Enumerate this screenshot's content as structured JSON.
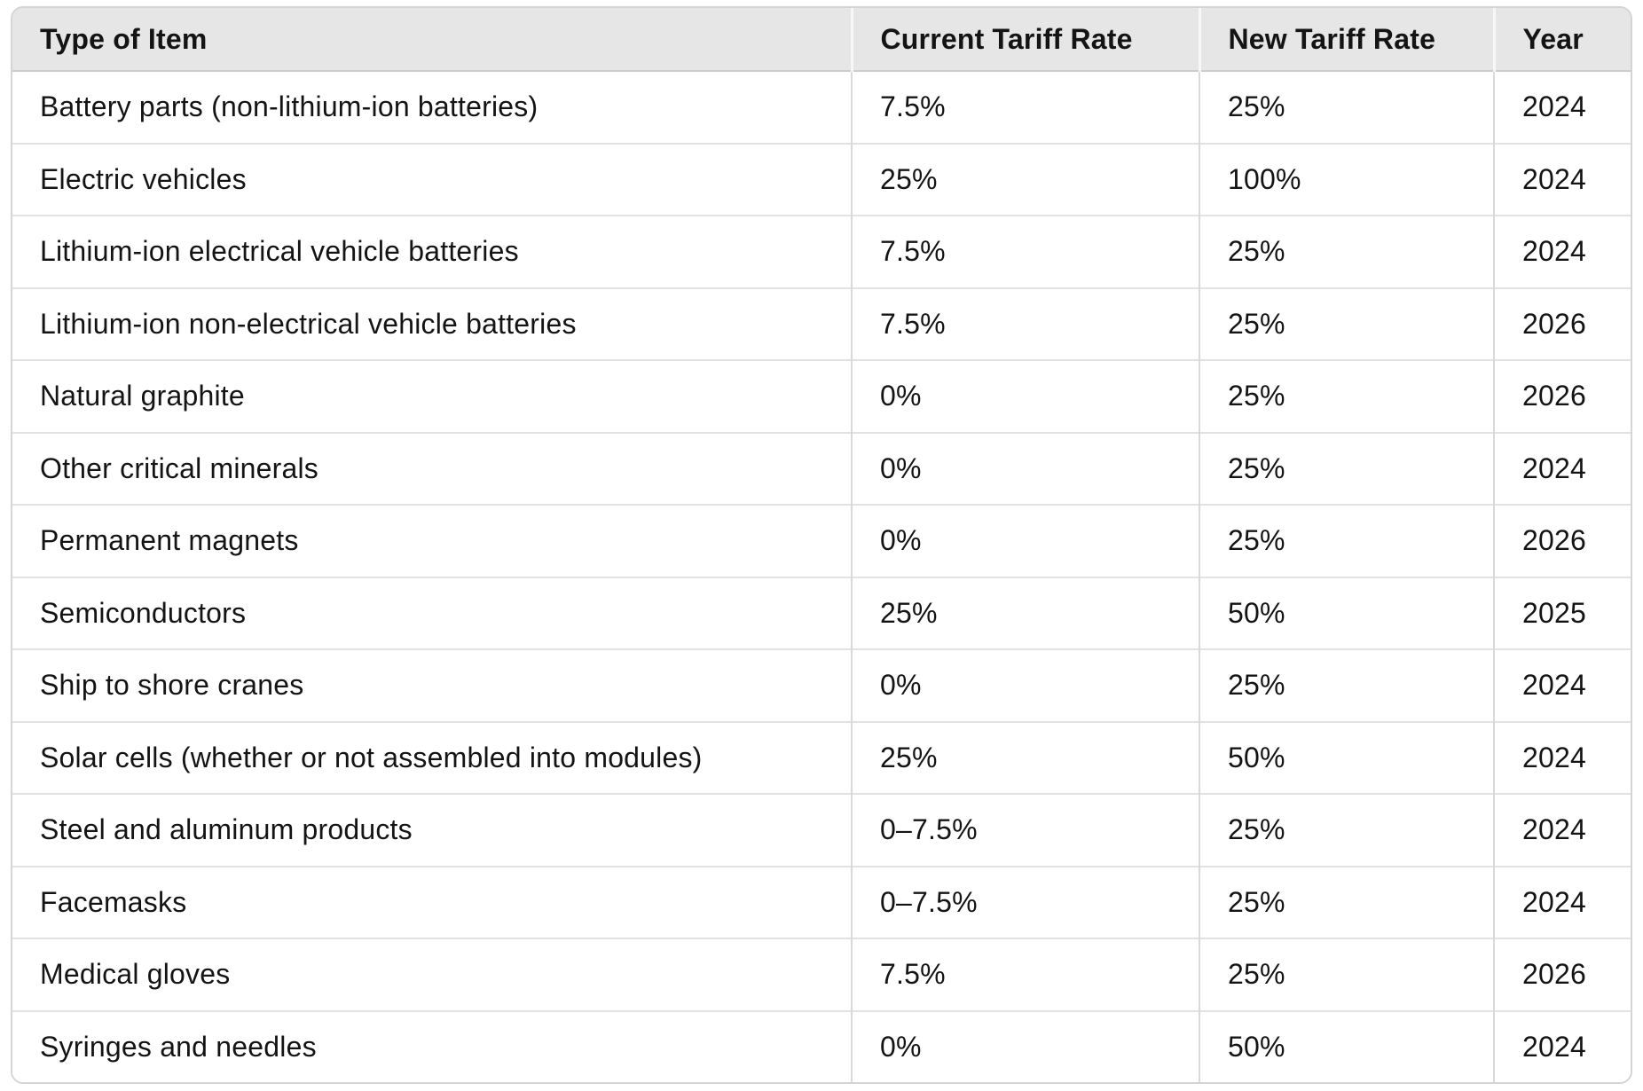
{
  "chart_data": {
    "type": "table",
    "columns": [
      "Type of Item",
      "Current Tariff Rate",
      "New Tariff Rate",
      "Year"
    ],
    "rows": [
      [
        "Battery parts (non-lithium-ion batteries)",
        "7.5%",
        "25%",
        "2024"
      ],
      [
        "Electric vehicles",
        "25%",
        "100%",
        "2024"
      ],
      [
        "Lithium-ion electrical vehicle batteries",
        "7.5%",
        "25%",
        "2024"
      ],
      [
        "Lithium-ion non-electrical vehicle batteries",
        "7.5%",
        "25%",
        "2026"
      ],
      [
        "Natural graphite",
        "0%",
        "25%",
        "2026"
      ],
      [
        "Other critical minerals",
        "0%",
        "25%",
        "2024"
      ],
      [
        "Permanent magnets",
        "0%",
        "25%",
        "2026"
      ],
      [
        "Semiconductors",
        "25%",
        "50%",
        "2025"
      ],
      [
        "Ship to shore cranes",
        "0%",
        "25%",
        "2024"
      ],
      [
        "Solar cells (whether or not assembled into modules)",
        "25%",
        "50%",
        "2024"
      ],
      [
        "Steel and aluminum products",
        "0–7.5%",
        "25%",
        "2024"
      ],
      [
        "Facemasks",
        "0–7.5%",
        "25%",
        "2024"
      ],
      [
        "Medical gloves",
        "7.5%",
        "25%",
        "2026"
      ],
      [
        "Syringes and needles",
        "0%",
        "50%",
        "2024"
      ]
    ],
    "layout": {
      "grid": "on",
      "header_position": "top",
      "column_alignment": [
        "left",
        "left",
        "left",
        "left"
      ]
    },
    "colors": {
      "header_background": "#e6e6e6",
      "body_background": "#ffffff",
      "text": "#141414",
      "outer_border": "#d4d4d4",
      "row_divider": "#e2e2e2",
      "column_divider": "#d9d9d9",
      "header_bottom_border": "#cccccc"
    }
  }
}
